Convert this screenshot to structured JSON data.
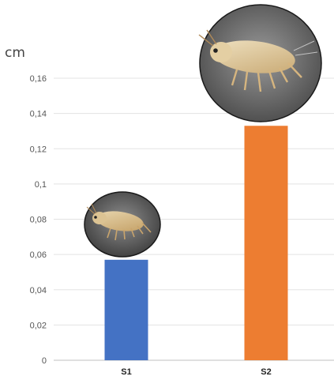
{
  "chart_data": {
    "type": "bar",
    "title": "",
    "xlabel": "",
    "ylabel": "cm",
    "categories": [
      "S1",
      "S2"
    ],
    "values": [
      0.057,
      0.133
    ],
    "ylim": [
      0,
      0.17
    ],
    "yticks": [
      0,
      0.02,
      0.04,
      0.06,
      0.08,
      0.1,
      0.12,
      0.14,
      0.16
    ],
    "ytick_labels": [
      "0",
      "0,02",
      "0,04",
      "0,06",
      "0,08",
      "0,1",
      "0,12",
      "0,14",
      "0,16"
    ],
    "grid": true,
    "legend": "none",
    "colors": [
      "#4472C4",
      "#ED7D31"
    ],
    "images": [
      "springtail-photo-small",
      "springtail-photo-large"
    ]
  }
}
